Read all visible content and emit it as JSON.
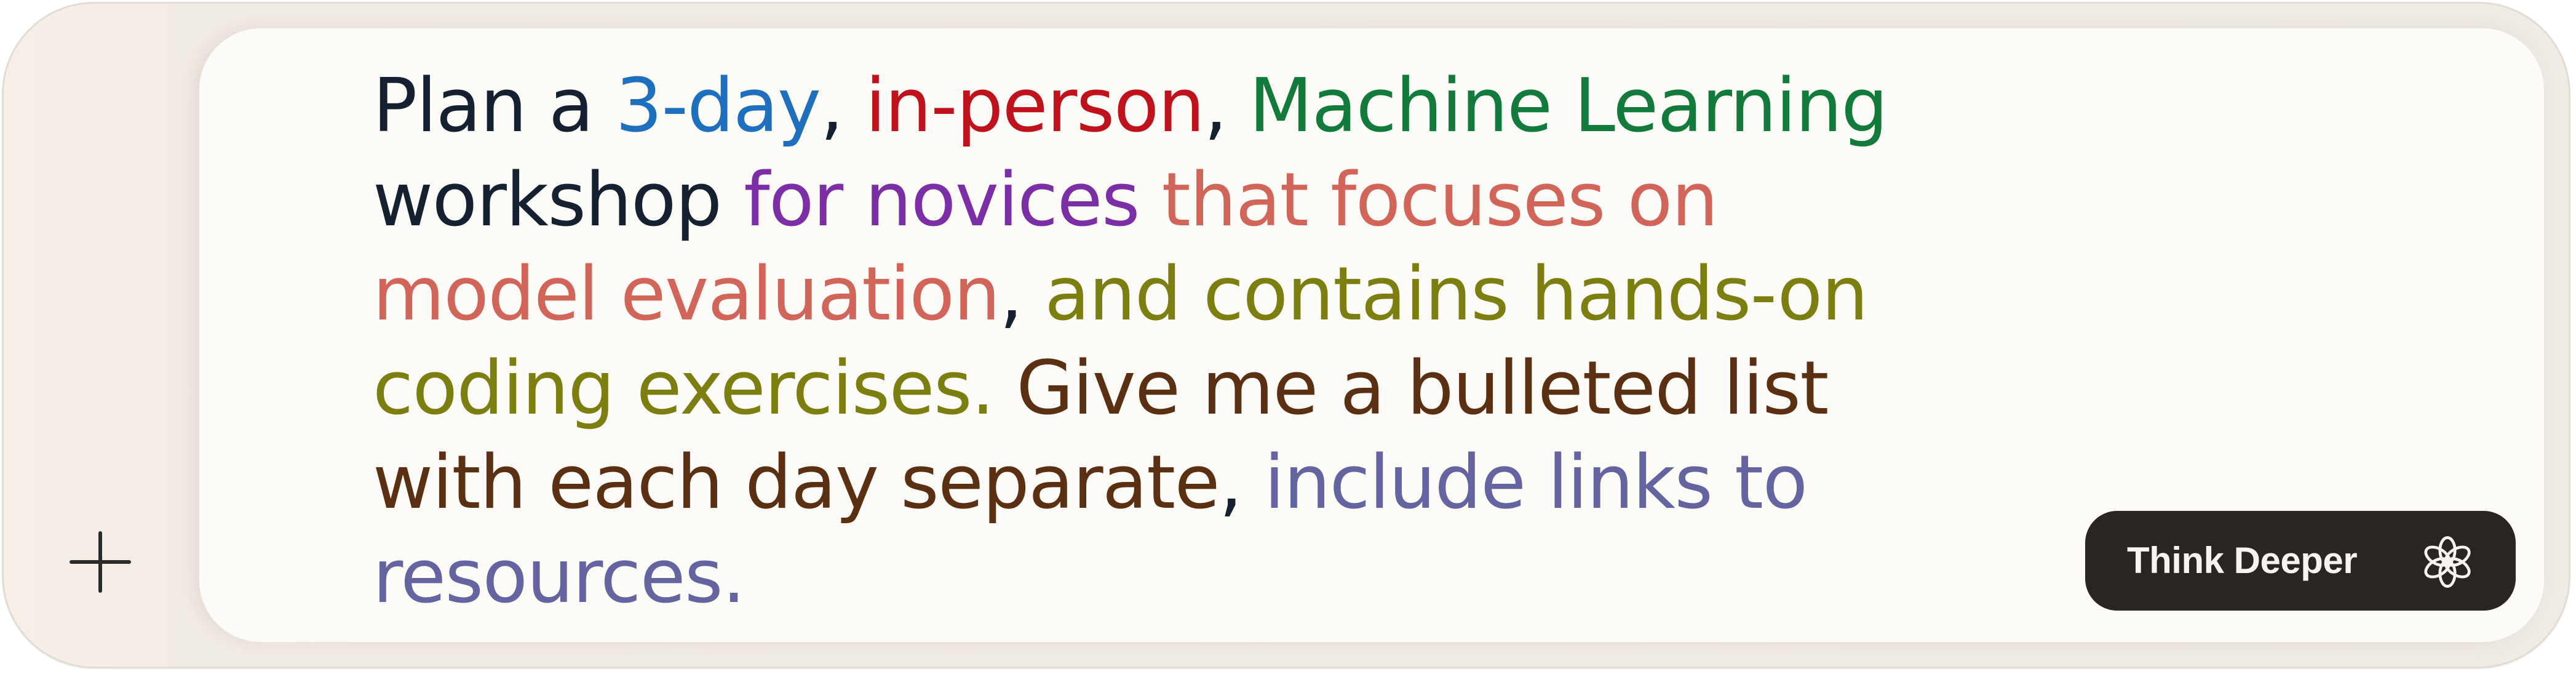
{
  "prompt": {
    "lines": [
      [
        {
          "text": "Plan a ",
          "color": "#152030"
        },
        {
          "text": "3-day",
          "color": "#1f6fbf"
        },
        {
          "text": ", ",
          "color": "#152030"
        },
        {
          "text": "in-person",
          "color": "#c0121c"
        },
        {
          "text": ", ",
          "color": "#152030"
        },
        {
          "text": "Machine Learning",
          "color": "#127a3a"
        }
      ],
      [
        {
          "text": "workshop ",
          "color": "#152030"
        },
        {
          "text": "for novices",
          "color": "#7b2ea6"
        },
        {
          "text": " ",
          "color": "#152030"
        },
        {
          "text": "that focuses on",
          "color": "#d2655a"
        }
      ],
      [
        {
          "text": "model evaluation",
          "color": "#d2655a"
        },
        {
          "text": ", ",
          "color": "#152030"
        },
        {
          "text": "and contains hands-on",
          "color": "#7d7e10"
        }
      ],
      [
        {
          "text": "coding exercises.",
          "color": "#7d7e10"
        },
        {
          "text": " ",
          "color": "#152030"
        },
        {
          "text": "Give me a bulleted list",
          "color": "#5b3012"
        }
      ],
      [
        {
          "text": "with each day separate",
          "color": "#5b3012"
        },
        {
          "text": ", ",
          "color": "#152030"
        },
        {
          "text": "include links to",
          "color": "#6464a0"
        }
      ],
      [
        {
          "text": "resources.",
          "color": "#6464a0"
        }
      ]
    ]
  },
  "add_button": {
    "icon": "plus-icon"
  },
  "think_deeper": {
    "label": "Think Deeper",
    "icon": "flower-knot-icon"
  },
  "colors": {
    "frame_background": "#f2ece6",
    "panel_background": "#fcfbf8",
    "button_background": "#2a2422",
    "button_text": "#f7f3ee"
  }
}
